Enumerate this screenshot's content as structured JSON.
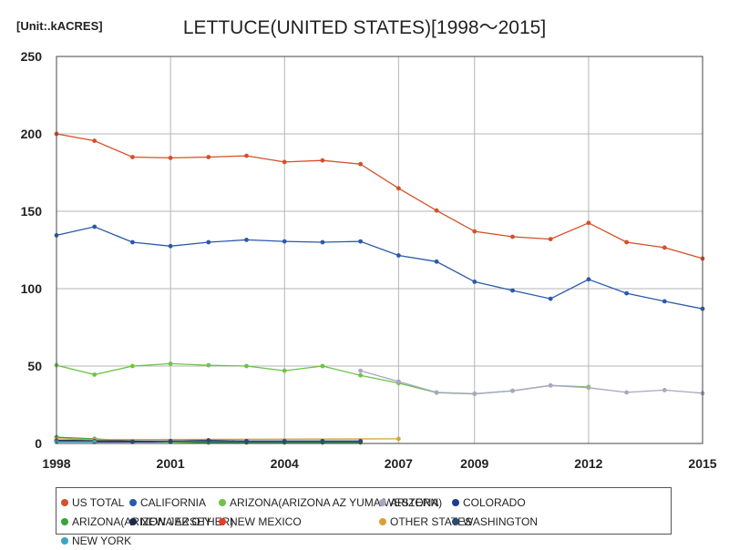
{
  "unit_label": "[Unit:.kACRES]",
  "chart_data": {
    "type": "line",
    "title": "LETTUCE(UNITED STATES)[1998～2015]",
    "xlabel": "",
    "ylabel": "",
    "xlim": [
      1998,
      2015
    ],
    "ylim": [
      0,
      250
    ],
    "x_ticks": [
      "1998",
      "2001",
      "2004",
      "2007",
      "2009",
      "2012",
      "2015"
    ],
    "y_ticks": [
      "0",
      "50",
      "100",
      "150",
      "200",
      "250"
    ],
    "grid": true,
    "legend_position": "bottom",
    "series": [
      {
        "name": "US TOTAL",
        "color": "#d3502a",
        "points": [
          [
            1998,
            200
          ],
          [
            1999,
            195.5
          ],
          [
            2000,
            185
          ],
          [
            2001,
            184.5
          ],
          [
            2002,
            185
          ],
          [
            2003,
            185.8
          ],
          [
            2004,
            181.8
          ],
          [
            2005,
            182.8
          ],
          [
            2006,
            180.5
          ],
          [
            2007,
            164.8
          ],
          [
            2008,
            150.5
          ],
          [
            2009,
            137
          ],
          [
            2010,
            133.5
          ],
          [
            2011,
            132
          ],
          [
            2012,
            142.5
          ],
          [
            2013,
            130
          ],
          [
            2014,
            126.5
          ],
          [
            2015,
            119.5
          ]
        ]
      },
      {
        "name": "CALIFORNIA",
        "color": "#2a5aa8",
        "points": [
          [
            1998,
            134.5
          ],
          [
            1999,
            140
          ],
          [
            2000,
            130
          ],
          [
            2001,
            127.5
          ],
          [
            2002,
            130
          ],
          [
            2003,
            131.5
          ],
          [
            2004,
            130.5
          ],
          [
            2005,
            130
          ],
          [
            2006,
            130.5
          ],
          [
            2007,
            121.5
          ],
          [
            2008,
            117.5
          ],
          [
            2009,
            104.5
          ],
          [
            2010,
            98.8
          ],
          [
            2011,
            93.5
          ],
          [
            2012,
            106
          ],
          [
            2013,
            97
          ],
          [
            2014,
            91.8
          ],
          [
            2015,
            87
          ]
        ]
      },
      {
        "name": "ARIZONA(ARIZONA AZ YUMA/WESTERN)",
        "color": "#6cc24a",
        "points": [
          [
            1998,
            50.5
          ],
          [
            1999,
            44.5
          ],
          [
            2000,
            50
          ],
          [
            2001,
            51.5
          ],
          [
            2002,
            50.5
          ],
          [
            2003,
            50
          ],
          [
            2004,
            47
          ],
          [
            2005,
            50
          ],
          [
            2006,
            44
          ],
          [
            2007,
            39
          ],
          [
            2008,
            32.8
          ],
          [
            2009,
            32
          ],
          [
            2010,
            34
          ],
          [
            2011,
            37.5
          ],
          [
            2012,
            36.5
          ]
        ]
      },
      {
        "name": "ARIZONA",
        "color": "#a9a6c4",
        "points": [
          [
            2006,
            47
          ],
          [
            2007,
            40
          ],
          [
            2008,
            33
          ],
          [
            2009,
            32.2
          ],
          [
            2010,
            34
          ],
          [
            2011,
            37.5
          ],
          [
            2012,
            36
          ],
          [
            2013,
            33
          ],
          [
            2014,
            34.5
          ],
          [
            2015,
            32.5
          ]
        ]
      },
      {
        "name": "COLORADO",
        "color": "#1f3a93",
        "points": [
          [
            1998,
            1.5
          ],
          [
            1999,
            1
          ],
          [
            2000,
            1
          ],
          [
            2001,
            1
          ],
          [
            2002,
            1
          ],
          [
            2003,
            1
          ],
          [
            2004,
            1
          ],
          [
            2005,
            1
          ],
          [
            2006,
            1
          ]
        ]
      },
      {
        "name": "ARIZONA(ARIZONA AZ OTHER)",
        "color": "#3aa43a",
        "points": [
          [
            1998,
            4
          ],
          [
            1999,
            3
          ],
          [
            2000,
            1.5
          ],
          [
            2001,
            1
          ],
          [
            2002,
            0.5
          ],
          [
            2003,
            0.5
          ],
          [
            2004,
            0.5
          ],
          [
            2005,
            0.5
          ],
          [
            2006,
            0.5
          ]
        ]
      },
      {
        "name": "NEW JERSEY",
        "color": "#1c2a4a",
        "points": [
          [
            1998,
            2
          ],
          [
            1999,
            2
          ],
          [
            2000,
            1.5
          ],
          [
            2001,
            1.5
          ],
          [
            2002,
            2
          ],
          [
            2003,
            1.5
          ],
          [
            2004,
            1.5
          ],
          [
            2005,
            1.5
          ],
          [
            2006,
            1.5
          ]
        ]
      },
      {
        "name": "NEW MEXICO",
        "color": "#e0402a",
        "points": [
          [
            1998,
            1
          ],
          [
            1999,
            1
          ]
        ]
      },
      {
        "name": "OTHER STATES",
        "color": "#d4a23a",
        "points": [
          [
            1998,
            3
          ],
          [
            1999,
            2.5
          ],
          [
            2007,
            3
          ]
        ]
      },
      {
        "name": "WASHINGTON",
        "color": "#2b4a6e",
        "points": [
          [
            1998,
            1.5
          ],
          [
            1999,
            1.5
          ],
          [
            2000,
            1
          ],
          [
            2001,
            1.5
          ],
          [
            2002,
            2
          ],
          [
            2003,
            1.5
          ],
          [
            2004,
            1.5
          ],
          [
            2005,
            1.5
          ],
          [
            2006,
            1.5
          ]
        ]
      },
      {
        "name": "NEW YORK",
        "color": "#3aa4c4",
        "points": [
          [
            1998,
            1
          ],
          [
            1999,
            1
          ]
        ]
      }
    ]
  }
}
